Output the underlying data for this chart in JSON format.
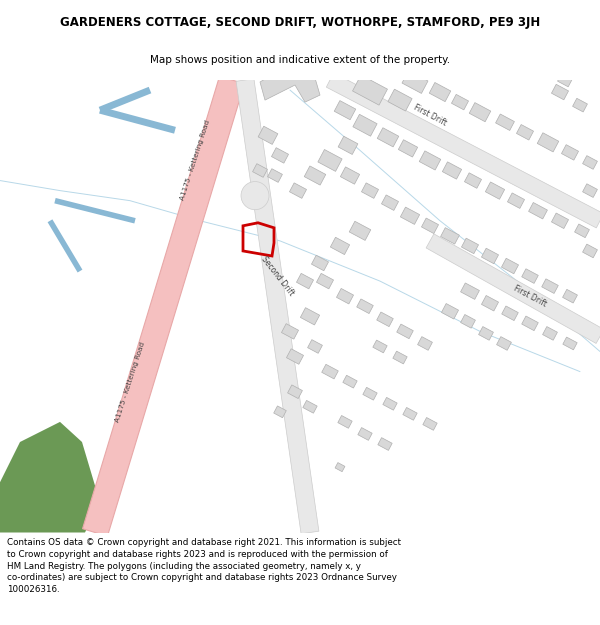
{
  "title_line1": "GARDENERS COTTAGE, SECOND DRIFT, WOTHORPE, STAMFORD, PE9 3JH",
  "title_line2": "Map shows position and indicative extent of the property.",
  "footer_lines": [
    "Contains OS data © Crown copyright and database right 2021. This information is subject to Crown copyright and database rights 2023 and is reproduced with the permission of",
    "HM Land Registry. The polygons (including the associated geometry, namely x, y co-ordinates) are subject to Crown copyright and database rights 2023 Ordnance Survey",
    "100026316."
  ],
  "map_bg": "#f2f2f0",
  "road_pink": "#f5c0c0",
  "road_pink_edge": "#e8a8a8",
  "building_fill": "#d8d8d8",
  "building_edge": "#b0b0b0",
  "road_fill": "#e8e8e8",
  "road_edge": "#cccccc",
  "green_fill": "#6b9955",
  "blue_solid": "#89b8d4",
  "water_thin": "#b8d8e8",
  "highlight_edge": "#cc0000",
  "label_color": "#444444",
  "white": "#ffffff"
}
